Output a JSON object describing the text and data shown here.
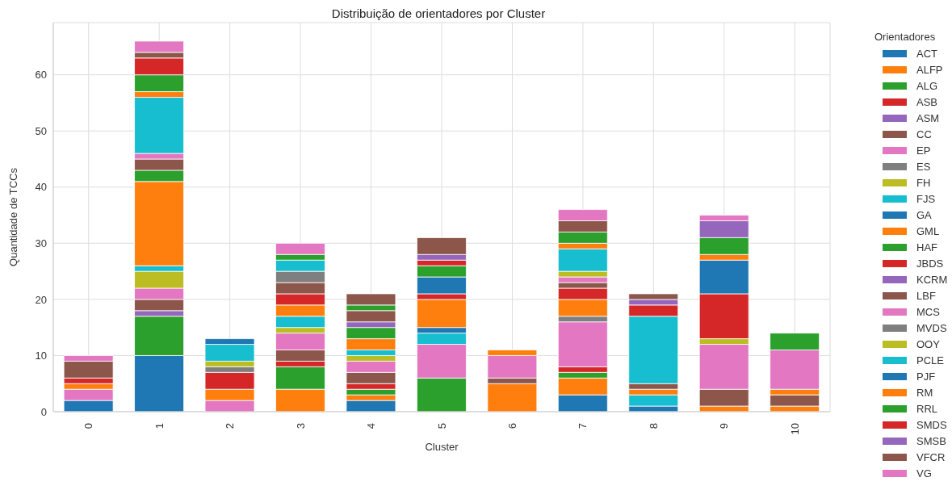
{
  "chart_data": {
    "type": "bar",
    "stacked": true,
    "title": "Distribuição de orientadores por Cluster",
    "xlabel": "Cluster",
    "ylabel": "Quantidade de TCCs",
    "legend_title": "Orientadores",
    "legend": "right",
    "grid": true,
    "categories": [
      "0",
      "1",
      "2",
      "3",
      "4",
      "5",
      "6",
      "7",
      "8",
      "9",
      "10"
    ],
    "ylim": [
      0,
      69.3
    ],
    "yticks": [
      0,
      10,
      20,
      30,
      40,
      50,
      60
    ],
    "series": [
      {
        "name": "ACT",
        "color": "#1f77b4",
        "values": [
          2,
          10,
          null,
          null,
          2,
          null,
          null,
          3,
          1,
          null,
          null
        ]
      },
      {
        "name": "ALFP",
        "color": "#ff7f0e",
        "values": [
          null,
          null,
          null,
          4,
          1,
          null,
          null,
          3,
          null,
          1,
          1
        ]
      },
      {
        "name": "ALG",
        "color": "#2ca02c",
        "values": [
          null,
          7,
          null,
          4,
          1,
          6,
          null,
          1,
          null,
          null,
          null
        ]
      },
      {
        "name": "ASB",
        "color": "#d62728",
        "values": [
          null,
          null,
          null,
          1,
          1,
          null,
          null,
          1,
          null,
          null,
          null
        ]
      },
      {
        "name": "ASM",
        "color": "#9467bd",
        "values": [
          null,
          1,
          null,
          null,
          null,
          null,
          null,
          null,
          null,
          null,
          null
        ]
      },
      {
        "name": "CC",
        "color": "#8c564b",
        "values": [
          null,
          2,
          null,
          2,
          2,
          null,
          null,
          null,
          null,
          3,
          2
        ]
      },
      {
        "name": "EP",
        "color": "#e377c2",
        "values": [
          2,
          2,
          2,
          3,
          2,
          6,
          null,
          8,
          null,
          8,
          null
        ]
      },
      {
        "name": "ES",
        "color": "#7f7f7f",
        "values": [
          null,
          null,
          null,
          null,
          null,
          null,
          null,
          1,
          null,
          null,
          null
        ]
      },
      {
        "name": "FH",
        "color": "#bcbd22",
        "values": [
          null,
          3,
          null,
          1,
          1,
          null,
          null,
          null,
          null,
          1,
          null
        ]
      },
      {
        "name": "FJS",
        "color": "#17becf",
        "values": [
          null,
          1,
          null,
          2,
          1,
          2,
          null,
          null,
          2,
          null,
          null
        ]
      },
      {
        "name": "GA",
        "color": "#1f77b4",
        "values": [
          null,
          null,
          null,
          null,
          null,
          1,
          null,
          null,
          null,
          null,
          null
        ]
      },
      {
        "name": "GML",
        "color": "#ff7f0e",
        "values": [
          1,
          15,
          2,
          2,
          2,
          5,
          5,
          3,
          1,
          null,
          1
        ]
      },
      {
        "name": "HAF",
        "color": "#2ca02c",
        "values": [
          null,
          2,
          null,
          null,
          2,
          null,
          null,
          null,
          null,
          null,
          null
        ]
      },
      {
        "name": "JBDS",
        "color": "#d62728",
        "values": [
          1,
          null,
          3,
          2,
          null,
          1,
          null,
          2,
          null,
          8,
          null
        ]
      },
      {
        "name": "KCRM",
        "color": "#9467bd",
        "values": [
          null,
          null,
          null,
          null,
          1,
          null,
          null,
          null,
          null,
          null,
          null
        ]
      },
      {
        "name": "LBF",
        "color": "#8c564b",
        "values": [
          3,
          2,
          null,
          2,
          2,
          null,
          1,
          1,
          1,
          null,
          null
        ]
      },
      {
        "name": "MCS",
        "color": "#e377c2",
        "values": [
          1,
          1,
          null,
          null,
          null,
          null,
          4,
          1,
          null,
          null,
          7
        ]
      },
      {
        "name": "MVDS",
        "color": "#7f7f7f",
        "values": [
          null,
          null,
          1,
          2,
          null,
          null,
          null,
          null,
          null,
          null,
          null
        ]
      },
      {
        "name": "OOY",
        "color": "#bcbd22",
        "values": [
          null,
          null,
          1,
          null,
          null,
          null,
          null,
          1,
          null,
          null,
          null
        ]
      },
      {
        "name": "PCLE",
        "color": "#17becf",
        "values": [
          null,
          10,
          3,
          2,
          null,
          null,
          null,
          4,
          12,
          null,
          null
        ]
      },
      {
        "name": "PJF",
        "color": "#1f77b4",
        "values": [
          null,
          null,
          1,
          null,
          null,
          3,
          null,
          null,
          null,
          6,
          null
        ]
      },
      {
        "name": "RM",
        "color": "#ff7f0e",
        "values": [
          null,
          1,
          null,
          null,
          null,
          null,
          1,
          1,
          null,
          1,
          null
        ]
      },
      {
        "name": "RRL",
        "color": "#2ca02c",
        "values": [
          null,
          3,
          null,
          1,
          1,
          2,
          null,
          2,
          null,
          3,
          3
        ]
      },
      {
        "name": "SMDS",
        "color": "#d62728",
        "values": [
          null,
          3,
          null,
          null,
          null,
          1,
          null,
          null,
          2,
          null,
          null
        ]
      },
      {
        "name": "SMSB",
        "color": "#9467bd",
        "values": [
          null,
          null,
          null,
          null,
          null,
          1,
          null,
          null,
          1,
          3,
          null
        ]
      },
      {
        "name": "VFCR",
        "color": "#8c564b",
        "values": [
          null,
          1,
          null,
          null,
          2,
          3,
          null,
          2,
          1,
          null,
          null
        ]
      },
      {
        "name": "VG",
        "color": "#e377c2",
        "values": [
          null,
          2,
          null,
          2,
          null,
          null,
          null,
          2,
          null,
          1,
          null
        ]
      }
    ]
  }
}
